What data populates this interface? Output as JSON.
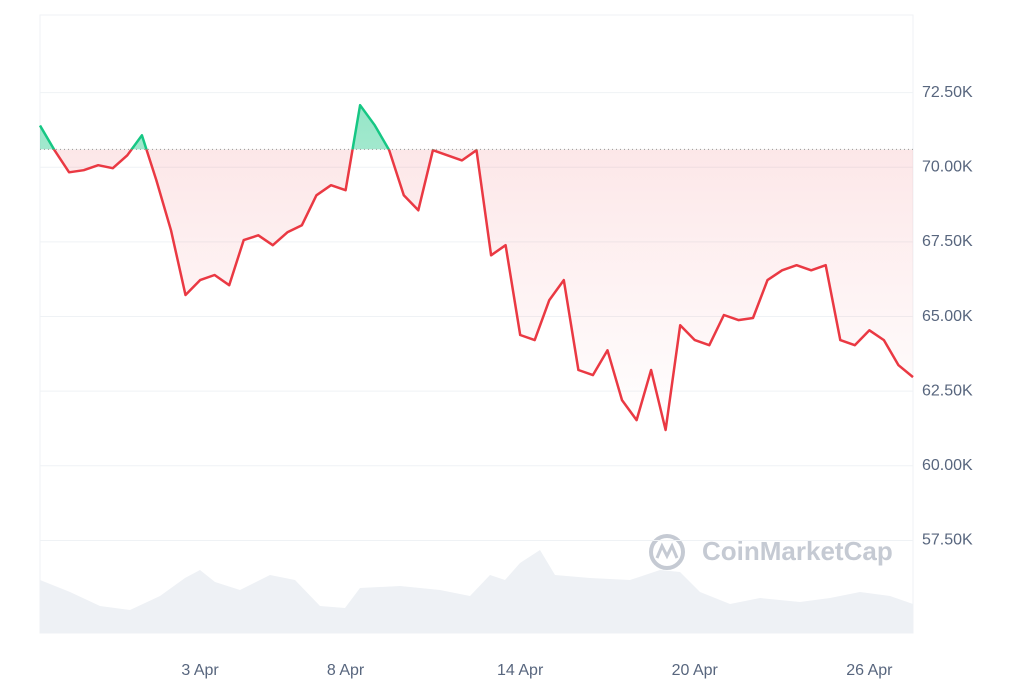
{
  "chart_data": {
    "type": "line",
    "watermark": "CoinMarketCap",
    "categories": [
      null,
      null,
      null,
      null,
      null,
      null,
      null,
      null,
      null,
      null,
      null,
      "3 Apr",
      null,
      null,
      null,
      null,
      null,
      null,
      null,
      null,
      null,
      "8 Apr",
      null,
      null,
      null,
      null,
      null,
      null,
      null,
      null,
      null,
      null,
      null,
      "14 Apr",
      null,
      null,
      null,
      null,
      null,
      null,
      null,
      null,
      null,
      null,
      null,
      "20 Apr",
      null,
      null,
      null,
      null,
      null,
      null,
      null,
      null,
      null,
      null,
      null,
      "26 Apr",
      null,
      null,
      null
    ],
    "values": [
      71400,
      70570,
      69830,
      69900,
      70070,
      69970,
      70400,
      71070,
      69560,
      67890,
      65720,
      66220,
      66390,
      66050,
      67560,
      67720,
      67390,
      67820,
      68060,
      69060,
      69400,
      69230,
      72080,
      71410,
      70570,
      69060,
      68560,
      70570,
      70400,
      70230,
      70570,
      67050,
      67390,
      64380,
      64210,
      65550,
      66220,
      63210,
      63040,
      63870,
      62200,
      61530,
      63210,
      61200,
      64710,
      64210,
      64040,
      65050,
      64880,
      64950,
      66220,
      66550,
      66720,
      66550,
      66720,
      64210,
      64040,
      64540,
      64210,
      63370,
      62970
    ],
    "baseline": 70600,
    "color": "#ea3943",
    "up_color": "#16c784",
    "ylim": [
      54400,
      75100
    ],
    "yticks": [
      {
        "value": 57500,
        "label": "57.50K"
      },
      {
        "value": 60000,
        "label": "60.00K"
      },
      {
        "value": 62500,
        "label": "62.50K"
      },
      {
        "value": 65000,
        "label": "65.00K"
      },
      {
        "value": 67500,
        "label": "67.50K"
      },
      {
        "value": 70000,
        "label": "70.00K"
      },
      {
        "value": 72500,
        "label": "72.50K"
      }
    ],
    "grid": true
  }
}
